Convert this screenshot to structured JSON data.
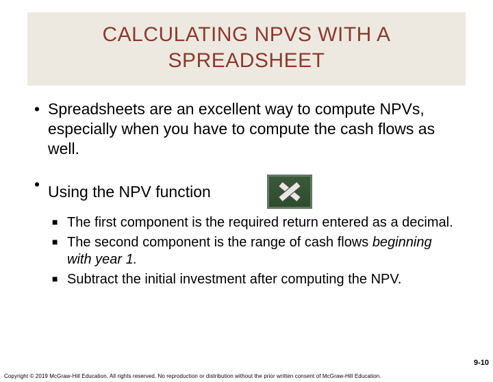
{
  "title": "CALCULATING NPVS WITH A SPREADSHEET",
  "bullets": {
    "b1": "Spreadsheets are an excellent way to compute NPVs, especially when you have to compute the cash flows as well.",
    "b2": "Using the NPV function",
    "sub1": "The first component is the required return entered as a decimal.",
    "sub2_a": "The second component is the range of cash flows ",
    "sub2_b": "beginning with year 1.",
    "sub3": "Subtract the initial investment after computing the NPV."
  },
  "pageNumber": "9-10",
  "copyright": "Copyright © 2019 McGraw-Hill Education. All rights reserved. No reproduction or distribution without the prior written consent of McGraw-Hill Education.",
  "colors": {
    "titleBg": "#ede9e1",
    "titleColor": "#8b3a2e"
  }
}
